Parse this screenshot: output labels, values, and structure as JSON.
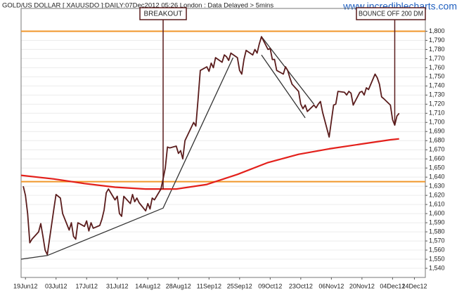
{
  "chart_data": {
    "type": "line",
    "title": "GOLD/US DOLLAR [ XAUUSDO ]:DAILY:07Dec2012 05:26 London : Data Delayed > 5mins",
    "watermark": "www.incrediblecharts.com",
    "xlim": [
      "2012-06-17",
      "2012-12-19"
    ],
    "ylim": [
      1530,
      1825
    ],
    "grid": true,
    "xticks": [
      {
        "value": "2012-06-19",
        "label": "19Jun12"
      },
      {
        "value": "2012-07-03",
        "label": "03Jul12"
      },
      {
        "value": "2012-07-17",
        "label": "17Jul12"
      },
      {
        "value": "2012-07-31",
        "label": "31Jul12"
      },
      {
        "value": "2012-08-14",
        "label": "14Aug12"
      },
      {
        "value": "2012-08-28",
        "label": "28Aug12"
      },
      {
        "value": "2012-09-11",
        "label": "11Sep12"
      },
      {
        "value": "2012-09-25",
        "label": "25Sep12"
      },
      {
        "value": "2012-10-09",
        "label": "09Oct12"
      },
      {
        "value": "2012-10-23",
        "label": "23Oct12"
      },
      {
        "value": "2012-11-06",
        "label": "06Nov12"
      },
      {
        "value": "2012-11-20",
        "label": "20Nov12"
      },
      {
        "value": "2012-12-04",
        "label": "04Dec12"
      },
      {
        "value": "2012-12-14",
        "label": "14Dec12"
      }
    ],
    "yticks": [
      {
        "value": 1540,
        "label": "1,540"
      },
      {
        "value": 1550,
        "label": "1,550"
      },
      {
        "value": 1560,
        "label": "1,560"
      },
      {
        "value": 1570,
        "label": "1,570"
      },
      {
        "value": 1580,
        "label": "1,580"
      },
      {
        "value": 1590,
        "label": "1,590"
      },
      {
        "value": 1600,
        "label": "1,600"
      },
      {
        "value": 1610,
        "label": "1,610"
      },
      {
        "value": 1620,
        "label": "1,620"
      },
      {
        "value": 1630,
        "label": "1,630"
      },
      {
        "value": 1640,
        "label": "1,640"
      },
      {
        "value": 1650,
        "label": "1,650"
      },
      {
        "value": 1660,
        "label": "1,660"
      },
      {
        "value": 1670,
        "label": "1,670"
      },
      {
        "value": 1680,
        "label": "1,680"
      },
      {
        "value": 1690,
        "label": "1,690"
      },
      {
        "value": 1700,
        "label": "1,700"
      },
      {
        "value": 1710,
        "label": "1,710"
      },
      {
        "value": 1720,
        "label": "1,720"
      },
      {
        "value": 1730,
        "label": "1,730"
      },
      {
        "value": 1740,
        "label": "1,740"
      },
      {
        "value": 1750,
        "label": "1,750"
      },
      {
        "value": 1760,
        "label": "1,760"
      },
      {
        "value": 1770,
        "label": "1,770"
      },
      {
        "value": 1780,
        "label": "1,780"
      },
      {
        "value": 1790,
        "label": "1,790"
      },
      {
        "value": 1800,
        "label": "1,800"
      }
    ],
    "hlines": {
      "color": "#f0962a",
      "values": [
        1800,
        1635
      ]
    },
    "series": [
      {
        "color": "#5a1c1c",
        "x": [
          "2012-06-18",
          "2012-06-19",
          "2012-06-20",
          "2012-06-21",
          "2012-06-22",
          "2012-06-25",
          "2012-06-26",
          "2012-06-27",
          "2012-06-28",
          "2012-06-29",
          "2012-07-02",
          "2012-07-03",
          "2012-07-05",
          "2012-07-06",
          "2012-07-09",
          "2012-07-10",
          "2012-07-11",
          "2012-07-12",
          "2012-07-13",
          "2012-07-16",
          "2012-07-17",
          "2012-07-18",
          "2012-07-19",
          "2012-07-20",
          "2012-07-23",
          "2012-07-24",
          "2012-07-25",
          "2012-07-26",
          "2012-07-27",
          "2012-07-30",
          "2012-07-31",
          "2012-08-01",
          "2012-08-02",
          "2012-08-03",
          "2012-08-06",
          "2012-08-07",
          "2012-08-08",
          "2012-08-09",
          "2012-08-10",
          "2012-08-13",
          "2012-08-14",
          "2012-08-15",
          "2012-08-16",
          "2012-08-17",
          "2012-08-20",
          "2012-08-21",
          "2012-08-22",
          "2012-08-23",
          "2012-08-24",
          "2012-08-27",
          "2012-08-28",
          "2012-08-29",
          "2012-08-30",
          "2012-08-31",
          "2012-09-04",
          "2012-09-05",
          "2012-09-06",
          "2012-09-07",
          "2012-09-10",
          "2012-09-11",
          "2012-09-12",
          "2012-09-13",
          "2012-09-14",
          "2012-09-17",
          "2012-09-18",
          "2012-09-19",
          "2012-09-20",
          "2012-09-21",
          "2012-09-24",
          "2012-09-25",
          "2012-09-26",
          "2012-09-27",
          "2012-09-28",
          "2012-10-01",
          "2012-10-02",
          "2012-10-03",
          "2012-10-04",
          "2012-10-05",
          "2012-10-08",
          "2012-10-09",
          "2012-10-10",
          "2012-10-11",
          "2012-10-12",
          "2012-10-15",
          "2012-10-16",
          "2012-10-17",
          "2012-10-18",
          "2012-10-19",
          "2012-10-22",
          "2012-10-23",
          "2012-10-24",
          "2012-10-25",
          "2012-10-26",
          "2012-10-29",
          "2012-10-30",
          "2012-10-31",
          "2012-11-01",
          "2012-11-02",
          "2012-11-05",
          "2012-11-06",
          "2012-11-07",
          "2012-11-08",
          "2012-11-09",
          "2012-11-12",
          "2012-11-13",
          "2012-11-14",
          "2012-11-15",
          "2012-11-16",
          "2012-11-19",
          "2012-11-20",
          "2012-11-21",
          "2012-11-22",
          "2012-11-23",
          "2012-11-26",
          "2012-11-27",
          "2012-11-28",
          "2012-11-29",
          "2012-11-30",
          "2012-12-03",
          "2012-12-04",
          "2012-12-05",
          "2012-12-06",
          "2012-12-07"
        ],
        "values": [
          1630,
          1620,
          1600,
          1568,
          1572,
          1580,
          1589,
          1575,
          1560,
          1555,
          1605,
          1621,
          1617,
          1600,
          1582,
          1590,
          1575,
          1572,
          1590,
          1586,
          1592,
          1581,
          1590,
          1584,
          1587,
          1594,
          1604,
          1623,
          1627,
          1615,
          1619,
          1600,
          1597,
          1619,
          1611,
          1621,
          1613,
          1617,
          1612,
          1603,
          1611,
          1605,
          1617,
          1615,
          1627,
          1638,
          1650,
          1673,
          1672,
          1674,
          1666,
          1669,
          1660,
          1680,
          1700,
          1696,
          1726,
          1757,
          1761,
          1756,
          1765,
          1760,
          1771,
          1766,
          1774,
          1772,
          1768,
          1776,
          1771,
          1757,
          1753,
          1769,
          1779,
          1774,
          1780,
          1776,
          1786,
          1794,
          1780,
          1781,
          1769,
          1769,
          1757,
          1753,
          1761,
          1757,
          1749,
          1742,
          1734,
          1720,
          1715,
          1719,
          1712,
          1719,
          1716,
          1720,
          1723,
          1711,
          1684,
          1702,
          1719,
          1720,
          1734,
          1733,
          1730,
          1734,
          1732,
          1719,
          1733,
          1734,
          1730,
          1738,
          1736,
          1753,
          1749,
          1742,
          1728,
          1726,
          1719,
          1703,
          1697,
          1707,
          1710
        ]
      },
      {
        "color": "#e3201b",
        "x": [
          "2012-06-17",
          "2012-07-02",
          "2012-07-16",
          "2012-07-30",
          "2012-08-13",
          "2012-08-27",
          "2012-09-10",
          "2012-09-24",
          "2012-10-08",
          "2012-10-22",
          "2012-11-05",
          "2012-11-19",
          "2012-12-03",
          "2012-12-07"
        ],
        "values": [
          1642,
          1638,
          1633,
          1629,
          1627,
          1627,
          1632,
          1643,
          1656,
          1665,
          1671,
          1676,
          1681,
          1682
        ]
      }
    ],
    "trendlines": {
      "color": "#333333",
      "lines": [
        {
          "x": [
            "2012-06-17",
            "2012-06-29",
            "2012-08-21",
            "2012-09-22"
          ],
          "values": [
            1550,
            1554,
            1606,
            1771
          ]
        },
        {
          "x": [
            "2012-10-05",
            "2012-10-29"
          ],
          "values": [
            1794,
            1720
          ]
        },
        {
          "x": [
            "2012-10-05",
            "2012-10-25"
          ],
          "values": [
            1774,
            1705
          ]
        }
      ]
    },
    "annotations": [
      {
        "text": "BREAKOUT",
        "x": "2012-08-21",
        "value": 1627
      },
      {
        "text": "BOUNCE OFF 200 DM",
        "x": "2012-12-05",
        "value": 1697
      }
    ]
  }
}
